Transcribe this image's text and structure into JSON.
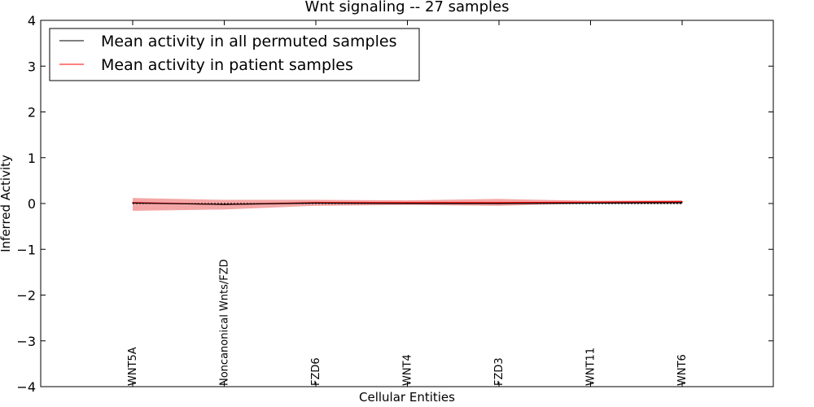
{
  "chart_data": {
    "type": "line",
    "title": "Wnt signaling -- 27 samples",
    "xlabel": "Cellular Entities",
    "ylabel": "Inferred Activity",
    "ylim": [
      -4,
      4
    ],
    "yticks": [
      4,
      3,
      2,
      1,
      0,
      -1,
      -2,
      -3,
      -4
    ],
    "ytick_labels": [
      "4",
      "3",
      "2",
      "1",
      "0",
      "−1",
      "−2",
      "−3",
      "−4"
    ],
    "categories": [
      "WNT5A",
      "Noncanonical Wnts/FZD",
      "FZD6",
      "WNT4",
      "FZD3",
      "WNT11",
      "WNT6"
    ],
    "legend_position": "top-left",
    "grid": false,
    "series": [
      {
        "name": "Mean activity in all permuted samples",
        "color": "#000000",
        "values": [
          0.01,
          -0.02,
          0.01,
          0.0,
          0.0,
          0.01,
          0.02
        ],
        "band_lower": [
          0.0,
          -0.03,
          -0.01,
          -0.02,
          -0.02,
          -0.02,
          -0.02
        ],
        "band_upper": [
          0.02,
          0.0,
          0.02,
          0.02,
          0.02,
          0.04,
          0.06
        ],
        "band_color": "#c8c8c8"
      },
      {
        "name": "Mean activity in patient samples",
        "color": "#ff0000",
        "values": [
          0.02,
          -0.02,
          0.02,
          0.02,
          0.02,
          0.03,
          0.04
        ],
        "band_lower": [
          -0.16,
          -0.13,
          -0.05,
          -0.03,
          -0.05,
          0.0,
          0.0
        ],
        "band_upper": [
          0.12,
          0.08,
          0.08,
          0.07,
          0.1,
          0.06,
          0.07
        ],
        "band_color": "#f08080"
      }
    ]
  }
}
